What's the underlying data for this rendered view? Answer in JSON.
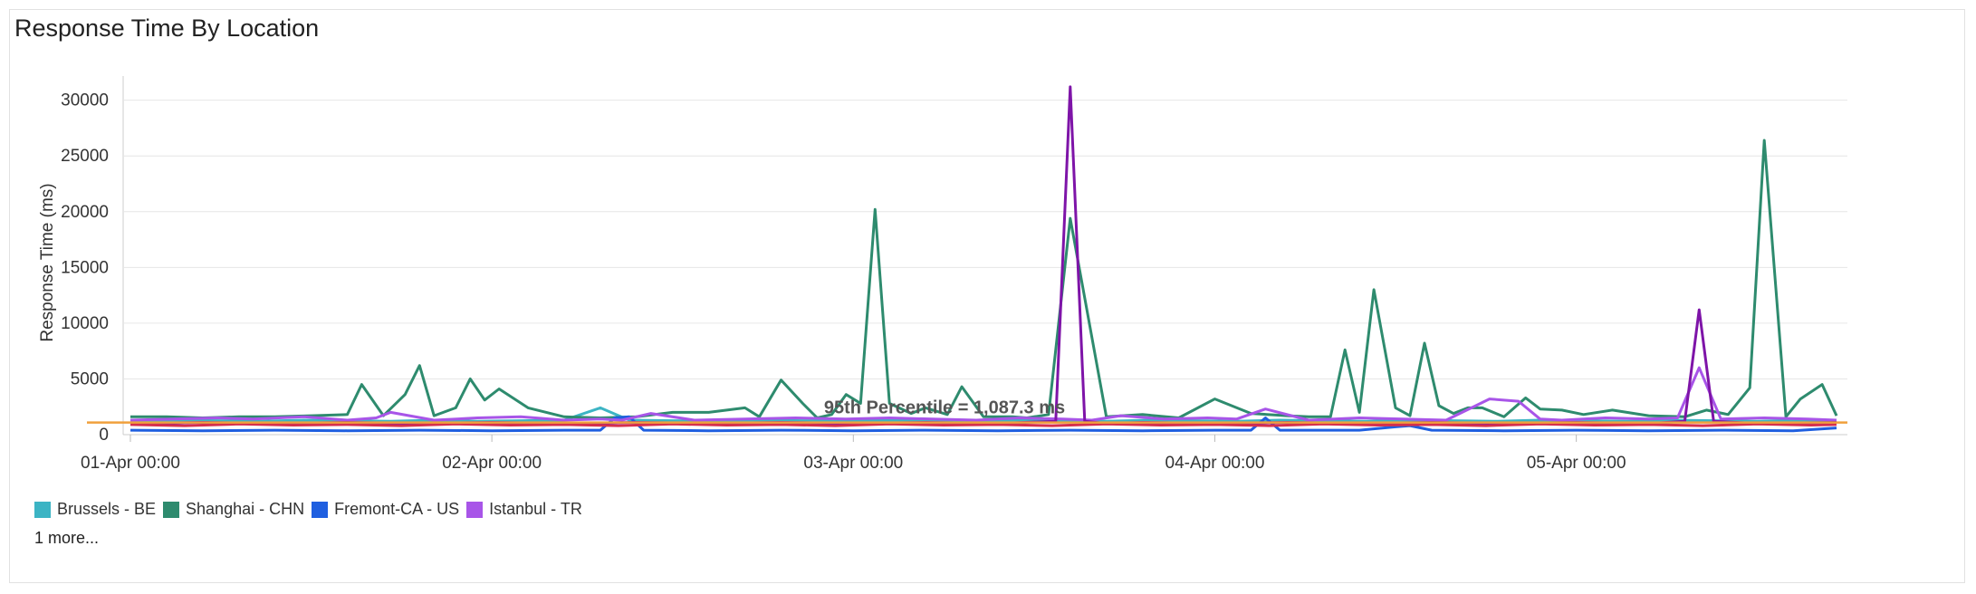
{
  "chart_data": {
    "type": "line",
    "title": "Response Time By Location",
    "ylabel": "Response Time (ms)",
    "xlabel": "",
    "ylim": [
      0,
      32000
    ],
    "yticks": [
      "0",
      "5000",
      "10000",
      "15000",
      "20000",
      "25000",
      "30000"
    ],
    "ytick_values": [
      0,
      5000,
      10000,
      15000,
      20000,
      25000,
      30000
    ],
    "xlim": [
      -0.02,
      4.75
    ],
    "xticks": [
      "01-Apr 00:00",
      "02-Apr 00:00",
      "03-Apr 00:00",
      "04-Apr 00:00",
      "05-Apr 00:00"
    ],
    "xtick_values": [
      0,
      1,
      2,
      3,
      4
    ],
    "reference_line": {
      "label": "95th Percentile = 1,087.3 ms",
      "value": 1087.3,
      "color": "#f0a03c"
    },
    "legend": {
      "placement": "bottom-left",
      "more": "1 more..."
    },
    "series": [
      {
        "name": "Brussels - BE",
        "color": "#3cb4c4",
        "x": [
          0,
          0.12,
          0.24,
          0.36,
          0.48,
          0.6,
          0.72,
          0.84,
          0.96,
          1.08,
          1.2,
          1.3,
          1.38,
          1.5,
          1.62,
          1.74,
          1.86,
          1.98,
          2.1,
          2.22,
          2.34,
          2.46,
          2.58,
          2.7,
          2.82,
          2.94,
          3.06,
          3.18,
          3.3,
          3.42,
          3.54,
          3.66,
          3.78,
          3.9,
          4.02,
          4.14,
          4.26,
          4.38,
          4.5,
          4.62,
          4.72
        ],
        "y": [
          1200,
          1300,
          1250,
          1200,
          1300,
          1250,
          1200,
          1300,
          1200,
          1250,
          1300,
          2400,
          1300,
          1250,
          1200,
          1300,
          1250,
          1200,
          1300,
          1250,
          1200,
          1300,
          1250,
          1200,
          1300,
          1250,
          1200,
          1300,
          1250,
          1200,
          1300,
          1250,
          1200,
          1300,
          1250,
          1200,
          1300,
          1250,
          1200,
          1300,
          1250
        ]
      },
      {
        "name": "Shanghai - CHN",
        "color": "#2e8b6e",
        "x": [
          0,
          0.1,
          0.2,
          0.3,
          0.4,
          0.5,
          0.6,
          0.64,
          0.7,
          0.76,
          0.8,
          0.84,
          0.9,
          0.94,
          0.98,
          1.02,
          1.1,
          1.2,
          1.3,
          1.4,
          1.5,
          1.6,
          1.7,
          1.74,
          1.8,
          1.86,
          1.9,
          1.94,
          1.98,
          2.02,
          2.06,
          2.1,
          2.16,
          2.2,
          2.26,
          2.3,
          2.36,
          2.44,
          2.48,
          2.54,
          2.6,
          2.7,
          2.8,
          2.9,
          3.0,
          3.1,
          3.2,
          3.26,
          3.32,
          3.36,
          3.4,
          3.44,
          3.5,
          3.54,
          3.58,
          3.62,
          3.66,
          3.7,
          3.74,
          3.8,
          3.86,
          3.9,
          3.96,
          4.02,
          4.1,
          4.2,
          4.3,
          4.36,
          4.42,
          4.48,
          4.52,
          4.58,
          4.62,
          4.68,
          4.72
        ],
        "y": [
          1600,
          1600,
          1500,
          1600,
          1600,
          1700,
          1800,
          4500,
          1700,
          3600,
          6200,
          1700,
          2400,
          5000,
          3100,
          4100,
          2400,
          1600,
          1500,
          1600,
          2000,
          2000,
          2400,
          1600,
          4900,
          2800,
          1500,
          1800,
          3600,
          2800,
          20200,
          2800,
          1900,
          2400,
          1800,
          4300,
          1600,
          1600,
          1500,
          1800,
          19400,
          1600,
          1800,
          1500,
          3200,
          1900,
          1700,
          1600,
          1600,
          7600,
          2000,
          13000,
          2400,
          1700,
          8200,
          2600,
          1900,
          2400,
          2400,
          1600,
          3300,
          2300,
          2200,
          1800,
          2200,
          1700,
          1600,
          2200,
          1800,
          4200,
          26400,
          1600,
          3200,
          4500,
          1700
        ]
      },
      {
        "name": "Fremont-CA - US",
        "color": "#1f5fe0",
        "x": [
          0,
          0.2,
          0.4,
          0.6,
          0.8,
          1.0,
          1.2,
          1.3,
          1.34,
          1.38,
          1.42,
          1.6,
          1.8,
          2.0,
          2.2,
          2.4,
          2.6,
          2.8,
          3.0,
          3.1,
          3.14,
          3.18,
          3.4,
          3.5,
          3.54,
          3.6,
          3.8,
          4.0,
          4.2,
          4.4,
          4.6,
          4.72
        ],
        "y": [
          400,
          350,
          400,
          350,
          400,
          350,
          400,
          400,
          1500,
          1600,
          400,
          350,
          400,
          350,
          400,
          350,
          400,
          350,
          400,
          400,
          1500,
          400,
          400,
          700,
          800,
          400,
          350,
          400,
          350,
          400,
          350,
          600
        ]
      },
      {
        "name": "Istanbul - TR",
        "color": "#a855e8",
        "x": [
          0,
          0.12,
          0.24,
          0.34,
          0.48,
          0.6,
          0.68,
          0.72,
          0.84,
          0.96,
          1.08,
          1.2,
          1.3,
          1.36,
          1.44,
          1.56,
          1.7,
          1.84,
          1.98,
          2.1,
          2.22,
          2.34,
          2.46,
          2.58,
          2.66,
          2.74,
          2.86,
          2.98,
          3.06,
          3.14,
          3.26,
          3.4,
          3.52,
          3.64,
          3.76,
          3.84,
          3.9,
          3.96,
          4.08,
          4.2,
          4.28,
          4.34,
          4.4,
          4.52,
          4.64,
          4.72
        ],
        "y": [
          1300,
          1400,
          1500,
          1400,
          1600,
          1300,
          1500,
          2000,
          1300,
          1500,
          1600,
          1300,
          1400,
          1300,
          1900,
          1300,
          1400,
          1500,
          1400,
          1500,
          1400,
          1300,
          1500,
          1400,
          1300,
          1700,
          1400,
          1500,
          1400,
          2300,
          1300,
          1500,
          1400,
          1300,
          3200,
          3000,
          1400,
          1300,
          1500,
          1400,
          1500,
          6000,
          1400,
          1500,
          1400,
          1300
        ]
      },
      {
        "name": "",
        "color": "#7e14a8",
        "x": [
          0,
          0.2,
          0.4,
          0.6,
          0.8,
          1.0,
          1.2,
          1.4,
          1.6,
          1.8,
          2.0,
          2.2,
          2.4,
          2.56,
          2.6,
          2.64,
          2.7,
          2.8,
          3.0,
          3.2,
          3.4,
          3.6,
          3.8,
          4.0,
          4.2,
          4.3,
          4.34,
          4.38,
          4.5,
          4.72
        ],
        "y": [
          1000,
          1100,
          1000,
          1100,
          1000,
          1100,
          1000,
          1100,
          1000,
          1100,
          1000,
          1100,
          1000,
          1200,
          31200,
          1200,
          1000,
          1100,
          1000,
          1100,
          1000,
          1100,
          1000,
          1100,
          1000,
          1200,
          11200,
          1200,
          1000,
          1100
        ]
      },
      {
        "name": "",
        "color": "#d62f4c",
        "x": [
          0,
          0.15,
          0.3,
          0.45,
          0.6,
          0.75,
          0.9,
          1.05,
          1.2,
          1.35,
          1.5,
          1.65,
          1.8,
          1.95,
          2.1,
          2.25,
          2.4,
          2.55,
          2.7,
          2.85,
          3.0,
          3.15,
          3.3,
          3.45,
          3.6,
          3.75,
          3.9,
          4.05,
          4.2,
          4.35,
          4.5,
          4.65,
          4.72
        ],
        "y": [
          900,
          800,
          950,
          850,
          900,
          800,
          950,
          850,
          900,
          800,
          950,
          850,
          900,
          800,
          950,
          850,
          900,
          800,
          950,
          850,
          900,
          800,
          950,
          850,
          900,
          800,
          950,
          850,
          900,
          800,
          950,
          850,
          900
        ]
      }
    ]
  },
  "legend_items": [
    {
      "label": "Brussels - BE",
      "color": "#3cb4c4"
    },
    {
      "label": "Shanghai - CHN",
      "color": "#2e8b6e"
    },
    {
      "label": "Fremont-CA - US",
      "color": "#1f5fe0"
    },
    {
      "label": "Istanbul - TR",
      "color": "#a855e8"
    }
  ]
}
